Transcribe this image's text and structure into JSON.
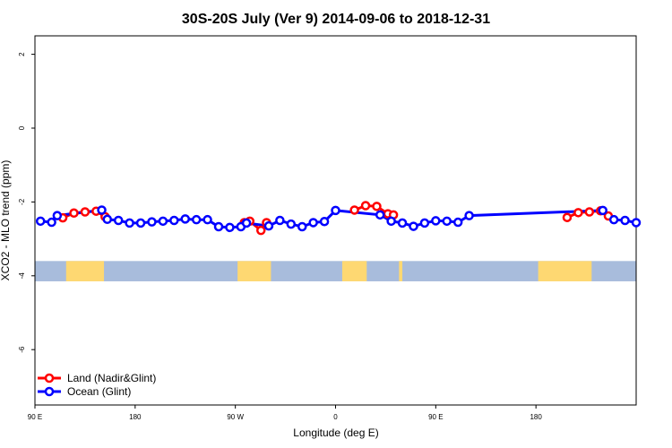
{
  "chart_data": {
    "type": "line",
    "title": "30S-20S July (Ver 9)   2014-09-06 to 2018-12-31",
    "xlabel": "Longitude (deg E)",
    "ylabel": "XCO2 - MLO trend (ppm)",
    "x_ticks": [
      "90 E",
      "180",
      "90 W",
      "0",
      "90 E",
      "180"
    ],
    "y_ticks": [
      "2",
      "0",
      "-2",
      "-4",
      "-6"
    ],
    "ylim": [
      -7.5,
      2.5
    ],
    "grid": false,
    "legend_position": "bottom-left",
    "series": [
      {
        "name": "Land (Nadir&Glint)",
        "color": "#ff0000",
        "segments": [
          [
            [
              115,
              -2.43
            ],
            [
              125,
              -2.3
            ],
            [
              135,
              -2.27
            ],
            [
              145,
              -2.25
            ],
            [
              153,
              -2.4
            ]
          ],
          [
            [
              278,
              -2.56
            ],
            [
              283,
              -2.52
            ],
            [
              293,
              -2.77
            ],
            [
              298,
              -2.56
            ]
          ],
          [
            [
              377,
              -2.22
            ],
            [
              387,
              -2.1
            ],
            [
              397,
              -2.12
            ],
            [
              407,
              -2.32
            ],
            [
              412,
              -2.35
            ]
          ],
          [
            [
              568,
              -2.42
            ],
            [
              578,
              -2.29
            ],
            [
              588,
              -2.27
            ],
            [
              598,
              -2.24
            ],
            [
              605,
              -2.38
            ]
          ]
        ]
      },
      {
        "name": "Ocean (Glint)",
        "color": "#0000ff",
        "points": [
          [
            95,
            -2.52
          ],
          [
            105,
            -2.55
          ],
          [
            110,
            -2.37
          ],
          [
            150,
            -2.22
          ],
          [
            155,
            -2.47
          ],
          [
            165,
            -2.5
          ],
          [
            175,
            -2.57
          ],
          [
            185,
            -2.57
          ],
          [
            195,
            -2.54
          ],
          [
            205,
            -2.52
          ],
          [
            215,
            -2.5
          ],
          [
            225,
            -2.46
          ],
          [
            235,
            -2.48
          ],
          [
            245,
            -2.48
          ],
          [
            255,
            -2.67
          ],
          [
            265,
            -2.69
          ],
          [
            275,
            -2.67
          ],
          [
            280,
            -2.57
          ],
          [
            300,
            -2.65
          ],
          [
            310,
            -2.5
          ],
          [
            320,
            -2.6
          ],
          [
            330,
            -2.67
          ],
          [
            340,
            -2.56
          ],
          [
            350,
            -2.53
          ],
          [
            360,
            -2.23
          ],
          [
            400,
            -2.35
          ],
          [
            410,
            -2.52
          ],
          [
            420,
            -2.57
          ],
          [
            430,
            -2.66
          ],
          [
            440,
            -2.57
          ],
          [
            450,
            -2.51
          ],
          [
            460,
            -2.52
          ],
          [
            470,
            -2.55
          ],
          [
            480,
            -2.37
          ],
          [
            600,
            -2.23
          ],
          [
            610,
            -2.48
          ],
          [
            620,
            -2.5
          ],
          [
            630,
            -2.56
          ]
        ]
      }
    ],
    "surface_band": {
      "y_top": -3.6,
      "y_bottom": -4.15,
      "ocean_color": "#a8bcdc",
      "land_color": "#fed872",
      "land_ranges": [
        [
          118,
          152
        ],
        [
          272,
          302
        ],
        [
          366,
          388
        ],
        [
          417,
          420
        ],
        [
          542,
          590
        ]
      ]
    }
  }
}
